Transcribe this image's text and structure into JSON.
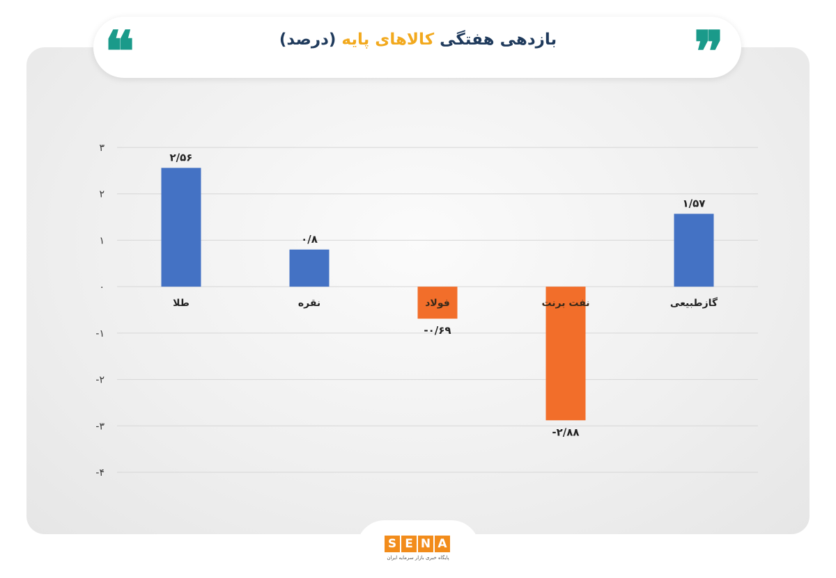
{
  "header": {
    "title_part1": "بازدهی هفتگی",
    "title_part2": "کالاهای پایه",
    "title_part3": "(درصد)",
    "quote_left": "❝",
    "quote_right": "❞"
  },
  "logo": {
    "letters": [
      "S",
      "E",
      "N",
      "A"
    ],
    "subtitle": "پایگاه خبری بازار سرمایه ایران"
  },
  "colors": {
    "positive": "#4472c4",
    "negative": "#f26e2a",
    "title_dark": "#1f3a5c",
    "title_accent": "#f2a91e",
    "quotes": "#1a9a8a"
  },
  "chart_data": {
    "type": "bar",
    "categories": [
      "طلا",
      "نقره",
      "فولاد",
      "نفت برنت",
      "گازطبیعی"
    ],
    "values": [
      2.56,
      0.8,
      -0.69,
      -2.88,
      1.57
    ],
    "data_labels": [
      "۲/۵۶",
      "۰/۸",
      "-۰/۶۹",
      "-۲/۸۸",
      "۱/۵۷"
    ],
    "ylim": [
      -4,
      3
    ],
    "yticks": [
      3,
      2,
      1,
      0,
      -1,
      -2,
      -3,
      -4
    ],
    "ytick_labels": [
      "۳",
      "۲",
      "۱",
      "۰",
      "-۱",
      "-۲",
      "-۳",
      "-۴"
    ],
    "grid": true,
    "legend": "none"
  }
}
